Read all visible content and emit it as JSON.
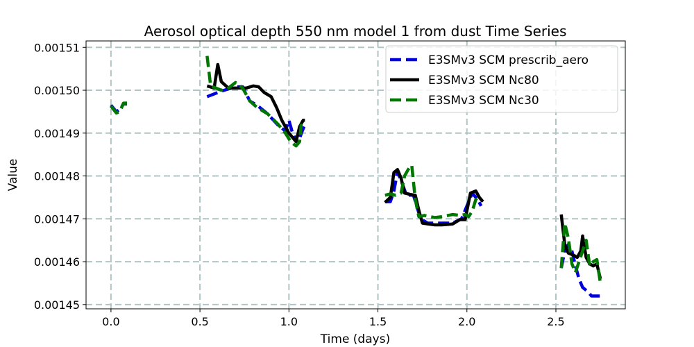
{
  "chart_data": {
    "type": "line",
    "title": "Aerosol optical depth 550 nm model 1 from dust Time Series",
    "xlabel": "Time (days)",
    "ylabel": "Value",
    "xlim": [
      -0.14,
      2.89
    ],
    "ylim": [
      0.001449,
      0.0015115
    ],
    "x_ticks": [
      0.0,
      0.5,
      1.0,
      1.5,
      2.0,
      2.5
    ],
    "x_tick_labels": [
      "0.0",
      "0.5",
      "1.0",
      "1.5",
      "2.0",
      "2.5"
    ],
    "y_ticks": [
      0.00145,
      0.00146,
      0.00147,
      0.00148,
      0.00149,
      0.0015,
      0.00151
    ],
    "y_tick_labels": [
      "0.00145",
      "0.00146",
      "0.00147",
      "0.00148",
      "0.00149",
      "0.00150",
      "0.00151"
    ],
    "grid": true,
    "legend_position": "top-right",
    "series": [
      {
        "name": "E3SMv3 SCM prescrib_aero",
        "color": "#0000dd",
        "style": "dashed",
        "segments": [
          [
            [
              0.0,
              0.0014965
            ],
            [
              0.03,
              0.001495
            ],
            [
              0.05,
              0.0014955
            ],
            [
              0.07,
              0.0014968
            ],
            [
              0.09,
              0.0014968
            ]
          ],
          [
            [
              0.54,
              0.0014985
            ],
            [
              0.62,
              0.0014998
            ],
            [
              0.7,
              0.0015008
            ],
            [
              0.74,
              0.0015008
            ],
            [
              0.78,
              0.0014975
            ],
            [
              0.82,
              0.0014965
            ],
            [
              0.88,
              0.0014945
            ],
            [
              0.94,
              0.0014918
            ],
            [
              0.98,
              0.0014905
            ],
            [
              1.0,
              0.001493
            ],
            [
              1.02,
              0.00149
            ],
            [
              1.05,
              0.0014875
            ],
            [
              1.07,
              0.00149
            ],
            [
              1.09,
              0.001492
            ]
          ],
          [
            [
              1.54,
              0.001474
            ],
            [
              1.57,
              0.001474
            ],
            [
              1.59,
              0.0014765
            ],
            [
              1.61,
              0.001481
            ],
            [
              1.63,
              0.001479
            ],
            [
              1.66,
              0.0014755
            ],
            [
              1.7,
              0.0014755
            ],
            [
              1.74,
              0.00147
            ],
            [
              1.78,
              0.001469
            ],
            [
              1.85,
              0.001469
            ],
            [
              1.92,
              0.001469
            ],
            [
              1.97,
              0.00147
            ],
            [
              2.0,
              0.001473
            ],
            [
              2.03,
              0.001476
            ],
            [
              2.06,
              0.0014745
            ],
            [
              2.08,
              0.001473
            ]
          ],
          [
            [
              2.53,
              0.0014585
            ],
            [
              2.55,
              0.0014625
            ],
            [
              2.57,
              0.001464
            ],
            [
              2.59,
              0.0014625
            ],
            [
              2.61,
              0.001459
            ],
            [
              2.63,
              0.001456
            ],
            [
              2.65,
              0.001454
            ],
            [
              2.68,
              0.001453
            ],
            [
              2.7,
              0.001452
            ],
            [
              2.72,
              0.001452
            ],
            [
              2.74,
              0.001452
            ],
            [
              2.76,
              0.001452
            ]
          ]
        ]
      },
      {
        "name": "E3SMv3 SCM Nc80",
        "color": "#000000",
        "style": "solid",
        "segments": [
          [
            [
              0.54,
              0.001501
            ],
            [
              0.58,
              0.0015005
            ],
            [
              0.6,
              0.001506
            ],
            [
              0.62,
              0.001502
            ],
            [
              0.66,
              0.0015005
            ],
            [
              0.72,
              0.0015005
            ],
            [
              0.76,
              0.0015005
            ],
            [
              0.8,
              0.001501
            ],
            [
              0.83,
              0.0015008
            ],
            [
              0.86,
              0.0014995
            ],
            [
              0.9,
              0.0014985
            ],
            [
              0.93,
              0.001496
            ],
            [
              0.96,
              0.001493
            ],
            [
              1.0,
              0.00149
            ],
            [
              1.04,
              0.001488
            ],
            [
              1.06,
              0.0014915
            ],
            [
              1.08,
              0.001493
            ],
            [
              1.09,
              0.001493
            ]
          ],
          [
            [
              1.54,
              0.0014738
            ],
            [
              1.57,
              0.001475
            ],
            [
              1.59,
              0.0014808
            ],
            [
              1.61,
              0.0014815
            ],
            [
              1.63,
              0.0014795
            ],
            [
              1.65,
              0.001476
            ],
            [
              1.68,
              0.0014757
            ],
            [
              1.71,
              0.0014755
            ],
            [
              1.73,
              0.001472
            ],
            [
              1.75,
              0.001469
            ],
            [
              1.78,
              0.0014688
            ],
            [
              1.82,
              0.0014686
            ],
            [
              1.86,
              0.0014686
            ],
            [
              1.92,
              0.0014688
            ],
            [
              1.96,
              0.0014698
            ],
            [
              1.99,
              0.0014698
            ],
            [
              2.02,
              0.001476
            ],
            [
              2.05,
              0.0014765
            ],
            [
              2.07,
              0.001475
            ],
            [
              2.09,
              0.001474
            ]
          ],
          [
            [
              2.53,
              0.001471
            ],
            [
              2.55,
              0.001464
            ],
            [
              2.57,
              0.001462
            ],
            [
              2.6,
              0.0014615
            ],
            [
              2.62,
              0.001461
            ],
            [
              2.64,
              0.0014625
            ],
            [
              2.65,
              0.001466
            ],
            [
              2.67,
              0.001461
            ],
            [
              2.69,
              0.0014595
            ],
            [
              2.71,
              0.001459
            ],
            [
              2.73,
              0.0014595
            ],
            [
              2.75,
              0.001456
            ]
          ]
        ]
      },
      {
        "name": "E3SMv3 SCM Nc30",
        "color": "#007700",
        "style": "dashed",
        "segments": [
          [
            [
              0.0,
              0.0014963
            ],
            [
              0.03,
              0.0014947
            ],
            [
              0.05,
              0.001495
            ],
            [
              0.07,
              0.001497
            ],
            [
              0.09,
              0.001497
            ]
          ],
          [
            [
              0.54,
              0.001508
            ],
            [
              0.56,
              0.001501
            ],
            [
              0.62,
              0.0015
            ],
            [
              0.66,
              0.0015005
            ],
            [
              0.7,
              0.0015018
            ],
            [
              0.74,
              0.0015005
            ],
            [
              0.78,
              0.0014975
            ],
            [
              0.82,
              0.001496
            ],
            [
              0.88,
              0.0014945
            ],
            [
              0.94,
              0.001492
            ],
            [
              0.98,
              0.00149
            ],
            [
              1.01,
              0.001488
            ],
            [
              1.04,
              0.001487
            ],
            [
              1.06,
              0.001488
            ],
            [
              1.07,
              0.0014925
            ]
          ],
          [
            [
              1.54,
              0.0014755
            ],
            [
              1.57,
              0.0014758
            ],
            [
              1.6,
              0.0014755
            ],
            [
              1.63,
              0.001476
            ],
            [
              1.65,
              0.00148
            ],
            [
              1.67,
              0.0014815
            ],
            [
              1.69,
              0.0014825
            ],
            [
              1.71,
              0.0014745
            ],
            [
              1.73,
              0.0014705
            ],
            [
              1.76,
              0.0014708
            ],
            [
              1.82,
              0.0014703
            ],
            [
              1.86,
              0.0014705
            ],
            [
              1.92,
              0.001471
            ],
            [
              1.96,
              0.0014708
            ],
            [
              1.99,
              0.001471
            ],
            [
              2.01,
              0.0014705
            ],
            [
              2.03,
              0.0014718
            ],
            [
              2.05,
              0.0014745
            ],
            [
              2.07,
              0.001474
            ]
          ],
          [
            [
              2.53,
              0.0014585
            ],
            [
              2.55,
              0.001469
            ],
            [
              2.57,
              0.0014655
            ],
            [
              2.59,
              0.0014595
            ],
            [
              2.61,
              0.0014575
            ],
            [
              2.63,
              0.00146
            ],
            [
              2.65,
              0.0014625
            ],
            [
              2.67,
              0.001465
            ],
            [
              2.69,
              0.001459
            ],
            [
              2.71,
              0.00146
            ],
            [
              2.73,
              0.0014605
            ],
            [
              2.75,
              0.001455
            ]
          ]
        ]
      }
    ]
  }
}
